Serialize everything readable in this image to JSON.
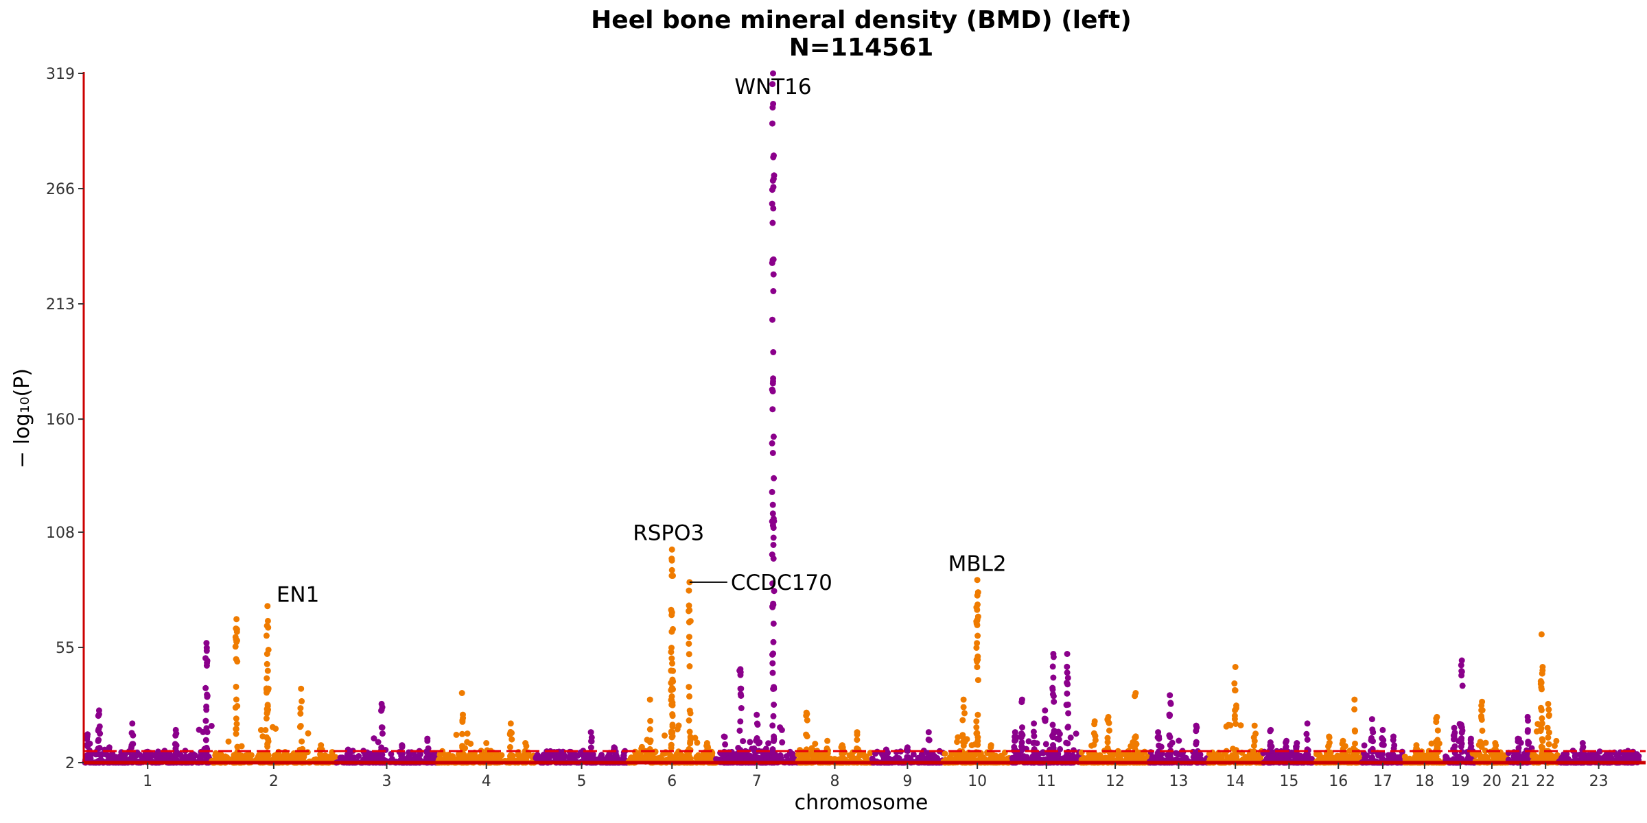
{
  "chart_data": {
    "type": "scatter",
    "subtype": "manhattan",
    "title": "Heel bone mineral density (BMD) (left)",
    "subtitle": "N=114561",
    "xlabel": "chromosome",
    "ylabel": "− log₁₀(P)",
    "ylim": [
      2,
      319
    ],
    "yticks": [
      2,
      55,
      108,
      160,
      213,
      266,
      319
    ],
    "chromosome_labels": [
      "1",
      "2",
      "3",
      "4",
      "5",
      "6",
      "7",
      "8",
      "9",
      "10",
      "11",
      "12",
      "13",
      "14",
      "15",
      "16",
      "17",
      "18",
      "19",
      "20",
      "21",
      "22",
      "23"
    ],
    "chromosome_lengths": [
      249,
      242,
      198,
      190,
      181,
      171,
      159,
      145,
      138,
      134,
      135,
      133,
      114,
      107,
      102,
      90,
      83,
      80,
      59,
      64,
      47,
      51,
      156
    ],
    "significance_threshold": 7.3,
    "colors": {
      "odd": "#8b008b",
      "even": "#ef7b00",
      "threshold": "#e8000b",
      "axis": "#cc0000"
    },
    "grid": false,
    "legend": "none",
    "peaks": [
      {
        "chr": 1,
        "pos": 0.03,
        "max": 15
      },
      {
        "chr": 1,
        "pos": 0.12,
        "max": 26
      },
      {
        "chr": 1,
        "pos": 0.2,
        "max": 9
      },
      {
        "chr": 1,
        "pos": 0.38,
        "max": 20
      },
      {
        "chr": 1,
        "pos": 0.5,
        "max": 7
      },
      {
        "chr": 1,
        "pos": 0.72,
        "max": 17
      },
      {
        "chr": 1,
        "pos": 0.85,
        "max": 6
      },
      {
        "chr": 1,
        "pos": 0.96,
        "max": 57
      },
      {
        "chr": 2,
        "pos": 0.2,
        "max": 68
      },
      {
        "chr": 2,
        "pos": 0.45,
        "max": 74,
        "label": "EN1",
        "label_offset": [
          13,
          -6
        ]
      },
      {
        "chr": 2,
        "pos": 0.72,
        "max": 36
      },
      {
        "chr": 2,
        "pos": 0.88,
        "max": 10
      },
      {
        "chr": 3,
        "pos": 0.12,
        "max": 8
      },
      {
        "chr": 3,
        "pos": 0.45,
        "max": 29
      },
      {
        "chr": 3,
        "pos": 0.65,
        "max": 10
      },
      {
        "chr": 3,
        "pos": 0.9,
        "max": 13
      },
      {
        "chr": 4,
        "pos": 0.25,
        "max": 34
      },
      {
        "chr": 4,
        "pos": 0.5,
        "max": 11
      },
      {
        "chr": 4,
        "pos": 0.75,
        "max": 20
      },
      {
        "chr": 4,
        "pos": 0.9,
        "max": 11
      },
      {
        "chr": 5,
        "pos": 0.3,
        "max": 7
      },
      {
        "chr": 5,
        "pos": 0.6,
        "max": 16
      },
      {
        "chr": 5,
        "pos": 0.85,
        "max": 9
      },
      {
        "chr": 6,
        "pos": 0.08,
        "max": 7
      },
      {
        "chr": 6,
        "pos": 0.25,
        "max": 31
      },
      {
        "chr": 6,
        "pos": 0.5,
        "max": 100,
        "label": "RSPO3",
        "label_anchor": "middle",
        "label_offset": [
          -5,
          -14
        ]
      },
      {
        "chr": 6,
        "pos": 0.7,
        "max": 85,
        "label": "CCDC170",
        "label_line": true
      },
      {
        "chr": 6,
        "pos": 0.9,
        "max": 11
      },
      {
        "chr": 7,
        "pos": 0.1,
        "max": 14
      },
      {
        "chr": 7,
        "pos": 0.3,
        "max": 45
      },
      {
        "chr": 7,
        "pos": 0.5,
        "max": 24
      },
      {
        "chr": 7,
        "pos": 0.7,
        "max": 319,
        "label": "WNT16",
        "label_anchor": "middle",
        "label_offset": [
          0,
          30
        ]
      },
      {
        "chr": 8,
        "pos": 0.12,
        "max": 25
      },
      {
        "chr": 8,
        "pos": 0.4,
        "max": 12
      },
      {
        "chr": 8,
        "pos": 0.6,
        "max": 10
      },
      {
        "chr": 8,
        "pos": 0.8,
        "max": 16
      },
      {
        "chr": 9,
        "pos": 0.2,
        "max": 8
      },
      {
        "chr": 9,
        "pos": 0.5,
        "max": 9
      },
      {
        "chr": 9,
        "pos": 0.8,
        "max": 16
      },
      {
        "chr": 10,
        "pos": 0.3,
        "max": 31
      },
      {
        "chr": 10,
        "pos": 0.5,
        "max": 86,
        "label": "MBL2",
        "label_anchor": "middle",
        "label_offset": [
          0,
          -13
        ]
      },
      {
        "chr": 10,
        "pos": 0.7,
        "max": 10
      },
      {
        "chr": 11,
        "pos": 0.05,
        "max": 16
      },
      {
        "chr": 11,
        "pos": 0.15,
        "max": 31
      },
      {
        "chr": 11,
        "pos": 0.32,
        "max": 20
      },
      {
        "chr": 11,
        "pos": 0.48,
        "max": 26
      },
      {
        "chr": 11,
        "pos": 0.6,
        "max": 52
      },
      {
        "chr": 11,
        "pos": 0.8,
        "max": 52
      },
      {
        "chr": 12,
        "pos": 0.2,
        "max": 21
      },
      {
        "chr": 12,
        "pos": 0.4,
        "max": 23
      },
      {
        "chr": 12,
        "pos": 0.8,
        "max": 34
      },
      {
        "chr": 13,
        "pos": 0.15,
        "max": 16
      },
      {
        "chr": 13,
        "pos": 0.35,
        "max": 33
      },
      {
        "chr": 13,
        "pos": 0.8,
        "max": 19
      },
      {
        "chr": 14,
        "pos": 0.5,
        "max": 46
      },
      {
        "chr": 14,
        "pos": 0.85,
        "max": 19
      },
      {
        "chr": 15,
        "pos": 0.15,
        "max": 17
      },
      {
        "chr": 15,
        "pos": 0.45,
        "max": 12
      },
      {
        "chr": 15,
        "pos": 0.65,
        "max": 11
      },
      {
        "chr": 15,
        "pos": 0.85,
        "max": 20
      },
      {
        "chr": 16,
        "pos": 0.3,
        "max": 14
      },
      {
        "chr": 16,
        "pos": 0.6,
        "max": 12
      },
      {
        "chr": 16,
        "pos": 0.85,
        "max": 31
      },
      {
        "chr": 17,
        "pos": 0.25,
        "max": 22
      },
      {
        "chr": 17,
        "pos": 0.5,
        "max": 17
      },
      {
        "chr": 17,
        "pos": 0.75,
        "max": 14
      },
      {
        "chr": 18,
        "pos": 0.3,
        "max": 10
      },
      {
        "chr": 18,
        "pos": 0.8,
        "max": 23
      },
      {
        "chr": 19,
        "pos": 0.3,
        "max": 18
      },
      {
        "chr": 19,
        "pos": 0.55,
        "max": 49
      },
      {
        "chr": 19,
        "pos": 0.85,
        "max": 13
      },
      {
        "chr": 20,
        "pos": 0.2,
        "max": 30
      },
      {
        "chr": 20,
        "pos": 0.6,
        "max": 11
      },
      {
        "chr": 21,
        "pos": 0.4,
        "max": 13
      },
      {
        "chr": 21,
        "pos": 0.8,
        "max": 23
      },
      {
        "chr": 22,
        "pos": 0.35,
        "max": 61
      },
      {
        "chr": 22,
        "pos": 0.6,
        "max": 29
      },
      {
        "chr": 23,
        "pos": 0.1,
        "max": 6
      },
      {
        "chr": 23,
        "pos": 0.3,
        "max": 11
      },
      {
        "chr": 23,
        "pos": 0.6,
        "max": 6
      },
      {
        "chr": 23,
        "pos": 0.85,
        "max": 5
      }
    ]
  }
}
